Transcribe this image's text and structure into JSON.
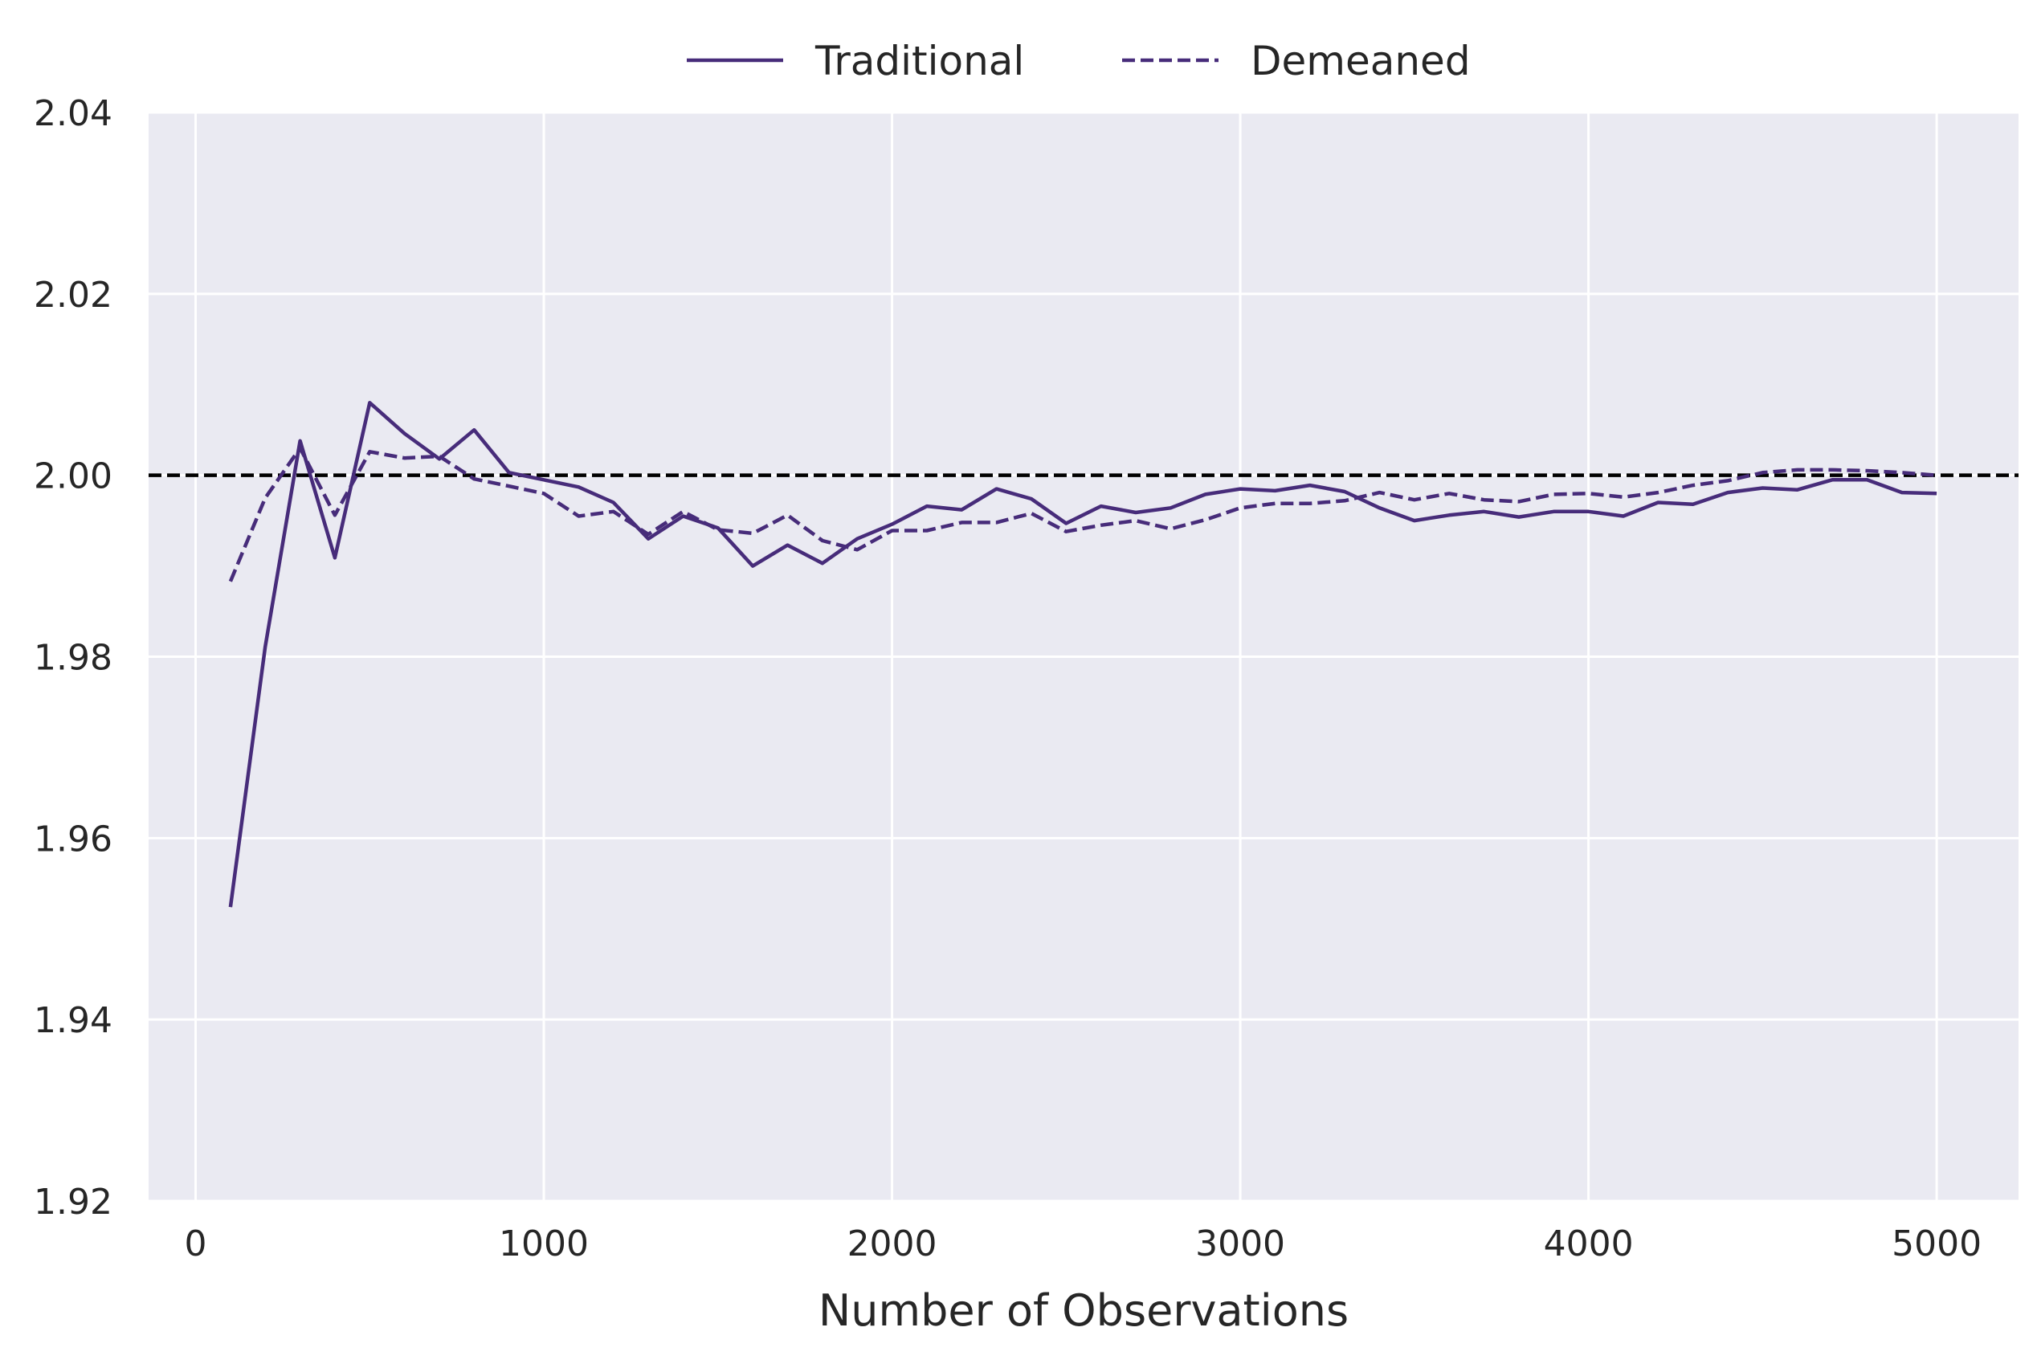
{
  "chart_data": {
    "type": "line",
    "title": "",
    "xlabel": "Number of Observations",
    "ylabel": "",
    "xlim": [
      -135,
      5235
    ],
    "ylim": [
      1.92,
      2.04
    ],
    "xticks": [
      0,
      1000,
      2000,
      3000,
      4000,
      5000
    ],
    "xtick_labels": [
      "0",
      "1000",
      "2000",
      "3000",
      "4000",
      "5000"
    ],
    "yticks": [
      1.92,
      1.94,
      1.96,
      1.98,
      2.0,
      2.02,
      2.04
    ],
    "ytick_labels": [
      "1.92",
      "1.94",
      "1.96",
      "1.98",
      "2.00",
      "2.02",
      "2.04"
    ],
    "grid": true,
    "legend_position": "top-center",
    "reference_line": {
      "y": 2.0,
      "style": "dashed",
      "color": "#000000"
    },
    "x": [
      100,
      200,
      300,
      400,
      500,
      600,
      700,
      800,
      900,
      1000,
      1100,
      1200,
      1300,
      1400,
      1500,
      1600,
      1700,
      1800,
      1900,
      2000,
      2100,
      2200,
      2300,
      2400,
      2500,
      2600,
      2700,
      2800,
      2900,
      3000,
      3100,
      3200,
      3300,
      3400,
      3500,
      3600,
      3700,
      3800,
      3900,
      4000,
      4100,
      4200,
      4300,
      4400,
      4500,
      4600,
      4700,
      4800,
      4900,
      5000
    ],
    "series": [
      {
        "name": "Traditional",
        "style": "solid",
        "color": "#472c7a",
        "values": [
          1.9524,
          1.9811,
          2.0038,
          1.9909,
          2.008,
          2.0046,
          2.0018,
          2.005,
          2.0003,
          1.9995,
          1.9987,
          1.997,
          1.993,
          1.9955,
          1.9942,
          1.99,
          1.9923,
          1.9903,
          1.993,
          1.9946,
          1.9966,
          1.9962,
          1.9985,
          1.9974,
          1.9947,
          1.9966,
          1.9959,
          1.9964,
          1.9979,
          1.9985,
          1.9983,
          1.9989,
          1.9982,
          1.9964,
          1.995,
          1.9956,
          1.996,
          1.9954,
          1.996,
          1.996,
          1.9955,
          1.997,
          1.9968,
          1.9981,
          1.9986,
          1.9984,
          1.9995,
          1.9995,
          1.9981,
          1.998
        ]
      },
      {
        "name": "Demeaned",
        "style": "dashed",
        "color": "#472c7a",
        "values": [
          1.9883,
          1.9975,
          2.003,
          1.9956,
          2.0026,
          2.0019,
          2.0021,
          1.9996,
          1.9988,
          1.998,
          1.9955,
          1.996,
          1.9935,
          1.996,
          1.994,
          1.9936,
          1.9956,
          1.9928,
          1.9918,
          1.9939,
          1.9939,
          1.9948,
          1.9948,
          1.9958,
          1.9938,
          1.9945,
          1.995,
          1.9941,
          1.9951,
          1.9964,
          1.9969,
          1.9969,
          1.9972,
          1.9981,
          1.9973,
          1.998,
          1.9973,
          1.9971,
          1.9979,
          1.998,
          1.9976,
          1.9981,
          1.9989,
          1.9994,
          2.0003,
          2.0006,
          2.0006,
          2.0005,
          2.0003,
          2.0
        ]
      }
    ]
  }
}
